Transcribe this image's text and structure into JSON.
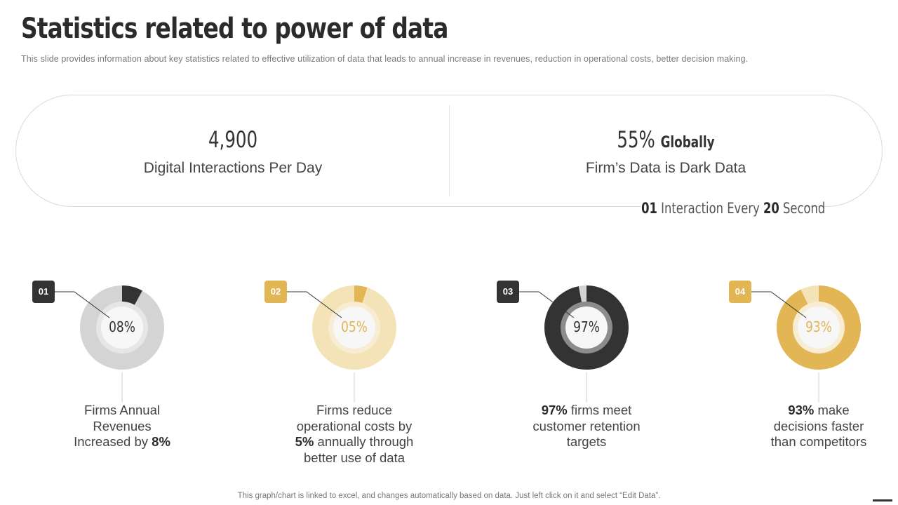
{
  "title": "Statistics related to power of data",
  "subtitle": "This slide provides  information  about  key statistics related to effective  utilization of data that leads to annual increase  in revenues,  reduction  in operational  costs, better decision  making.",
  "top_stats": [
    {
      "value": "4,900",
      "suffix": "",
      "label": "Digital Interactions Per Day"
    },
    {
      "value": "55%",
      "suffix": "Globally",
      "label": "Firm’s Data is Dark Data"
    }
  ],
  "interaction_note": {
    "n1": "01",
    "t1": "Interaction Every",
    "n2": "20",
    "t2": "Second"
  },
  "footer": "This graph/chart is linked to excel,  and changes automatically based on data. Just left click on it and select “Edit Data”.",
  "colors": {
    "dark": "#333333",
    "gold": "#e2b555",
    "gray_light": "#d4d4d4",
    "gold_light": "#f5e3b8"
  },
  "chart_data": {
    "type": "pie",
    "donuts": [
      {
        "badge": "01",
        "value": 8,
        "display": "08%",
        "color": "#333333",
        "track": "#d4d4d4",
        "center_color": "#333333",
        "caption": {
          "l1": "Firms Annual",
          "l2": "Revenues",
          "l3a": "Increased by ",
          "l3b": "8%",
          "l4": ""
        }
      },
      {
        "badge": "02",
        "value": 5,
        "display": "05%",
        "color": "#e2b555",
        "track": "#f5e3b8",
        "center_color": "#e2b555",
        "caption": {
          "l1": "Firms reduce",
          "l2": "operational costs by",
          "l3a": "5%",
          "l3b": " annually  through",
          "l4": "better use of data"
        }
      },
      {
        "badge": "03",
        "value": 97,
        "display": "97%",
        "color": "#333333",
        "track": "#d4d4d4",
        "center_color": "#333333",
        "caption": {
          "l1a": "97%",
          "l1b": " firms meet",
          "l2": "customer retention",
          "l3": "targets"
        }
      },
      {
        "badge": "04",
        "value": 93,
        "display": "93%",
        "color": "#e2b555",
        "track": "#f5e3b8",
        "center_color": "#e2b555",
        "caption": {
          "l1a": "93%",
          "l1b": " make",
          "l2": "decisions faster",
          "l3": "than competitors"
        }
      }
    ]
  }
}
